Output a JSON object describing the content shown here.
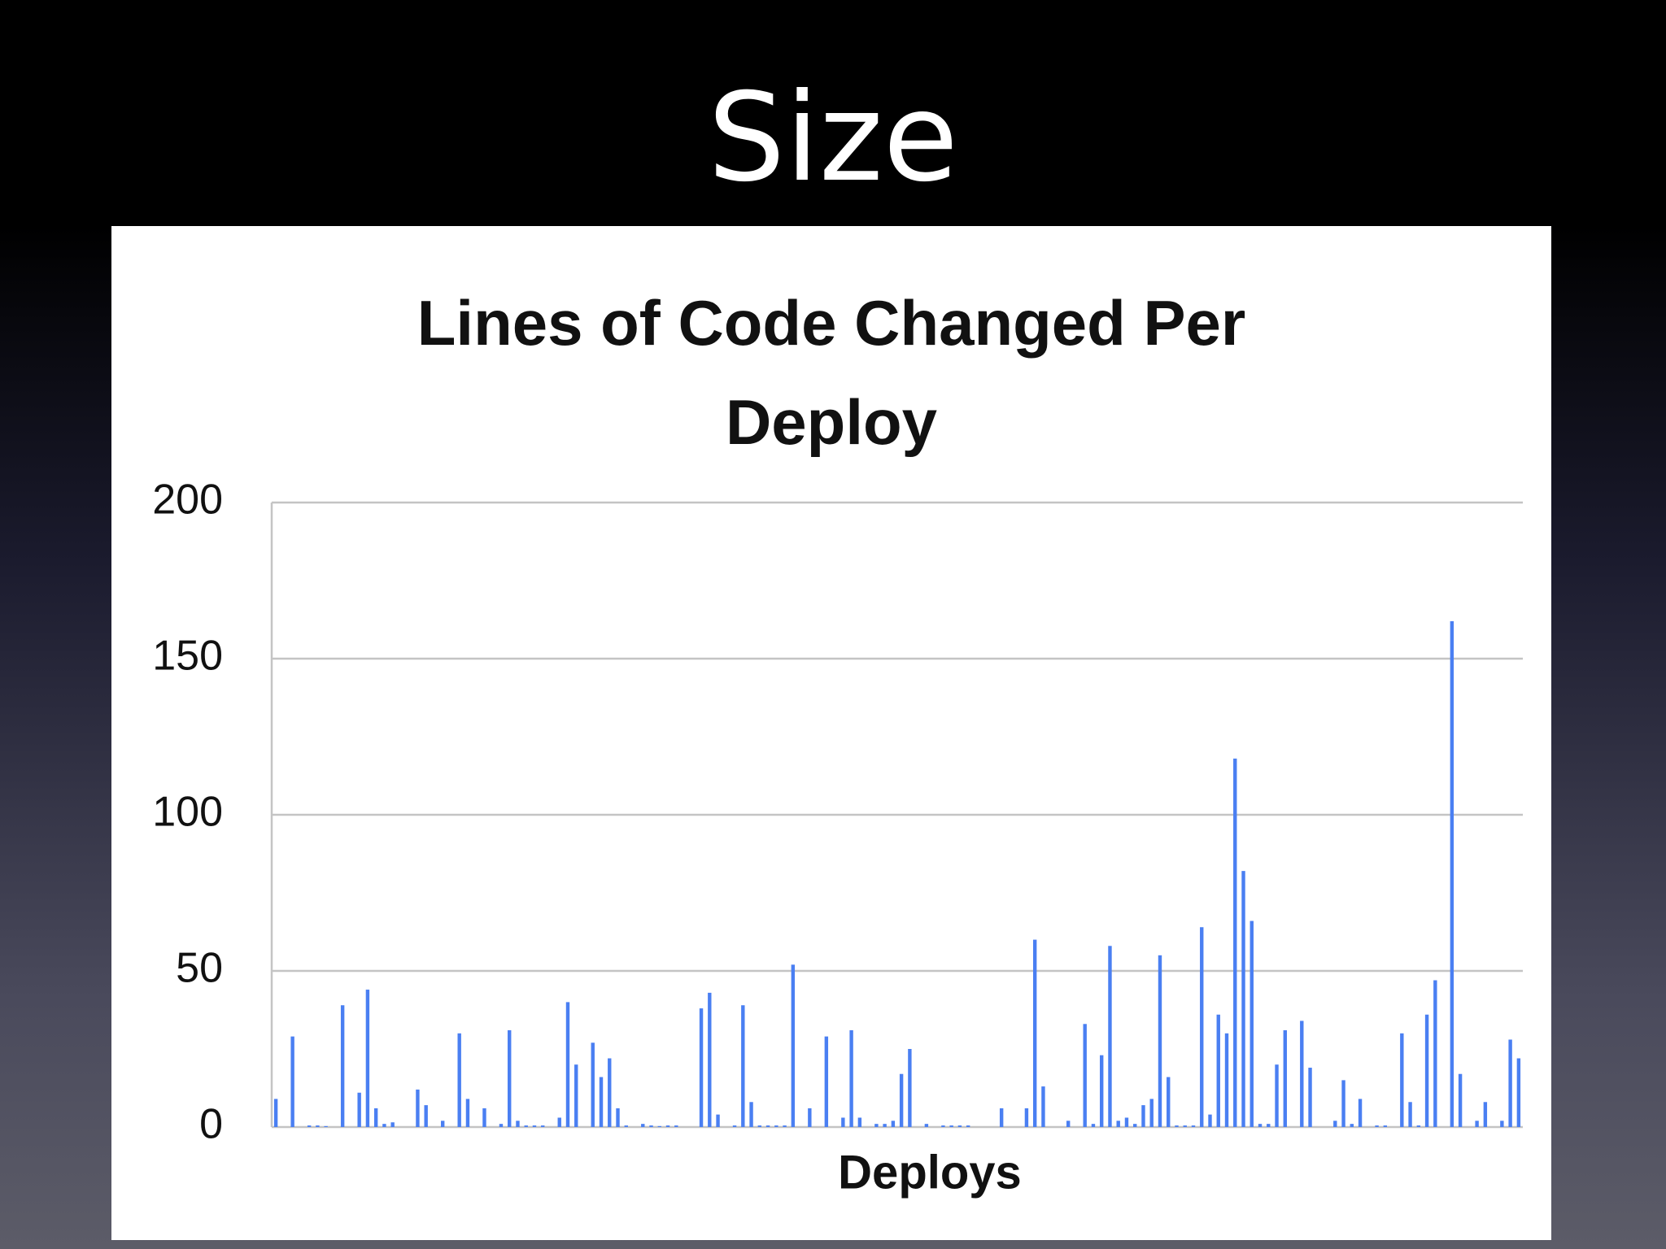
{
  "slide_title": "Size",
  "chart_data": {
    "type": "bar",
    "title": "Lines of Code Changed Per Deploy",
    "x_label": "Deploys",
    "categories": [
      null,
      null,
      null,
      null,
      null,
      null,
      null,
      null,
      null,
      null,
      null,
      null,
      null,
      null,
      null,
      null,
      null,
      null,
      null,
      null,
      null,
      null,
      null,
      null,
      null,
      null,
      null,
      null,
      null,
      null,
      null,
      null,
      null,
      null,
      null,
      null,
      null,
      null,
      null,
      null,
      null,
      null,
      null,
      null,
      null,
      null,
      null,
      null,
      null,
      null,
      null,
      null,
      null,
      null,
      null,
      null,
      null,
      null,
      null,
      null,
      null,
      null,
      null,
      null,
      null,
      null,
      null,
      null,
      null,
      null,
      null,
      null,
      null,
      null,
      null,
      null,
      null,
      null,
      null,
      null,
      null,
      null,
      null,
      null,
      null,
      null,
      null,
      null,
      null,
      null,
      null,
      null,
      null,
      null,
      null,
      null,
      null,
      null,
      null,
      null,
      null,
      null,
      null,
      null,
      null,
      null,
      null,
      null,
      null,
      null,
      null,
      null,
      null,
      null,
      null,
      null,
      null,
      null,
      null,
      null,
      null,
      null,
      null,
      null,
      null,
      null,
      null,
      null,
      null,
      null,
      null,
      null,
      null,
      null,
      null,
      null,
      null,
      null,
      null,
      null,
      null,
      null,
      null,
      null,
      null,
      null,
      null,
      null,
      null,
      null
    ],
    "values": [
      9,
      0,
      29,
      0,
      0.5,
      0.5,
      0.3,
      0,
      39,
      0,
      11,
      44,
      6,
      1,
      1.5,
      0,
      0,
      12,
      7,
      0,
      2,
      0,
      30,
      9,
      0,
      6,
      0,
      1,
      31,
      2,
      0.5,
      0.5,
      0.5,
      0,
      3,
      40,
      20,
      0,
      27,
      16,
      22,
      6,
      0.5,
      0,
      1,
      0.5,
      0.3,
      0.5,
      0.5,
      0,
      0,
      38,
      43,
      4,
      0,
      0.5,
      39,
      8,
      0.5,
      0.5,
      0.5,
      0.5,
      52,
      0,
      6,
      0,
      29,
      0,
      3,
      31,
      3,
      0,
      1,
      1,
      2,
      17,
      25,
      0,
      1,
      0,
      0.5,
      0.5,
      0.5,
      0.5,
      0,
      0,
      0,
      6,
      0,
      0,
      6,
      60,
      13,
      0,
      0,
      2,
      0,
      33,
      1,
      23,
      58,
      2,
      3,
      1,
      7,
      9,
      55,
      16,
      0.5,
      0.5,
      0.5,
      64,
      4,
      36,
      30,
      118,
      82,
      66,
      1,
      1,
      20,
      31,
      0,
      34,
      19,
      0,
      0,
      2,
      15,
      1,
      9,
      0,
      0.5,
      0.5,
      0,
      30,
      8,
      0.5,
      36,
      47,
      0,
      162,
      17,
      0,
      2,
      8,
      0,
      2,
      28,
      22
    ],
    "color": "#4a7ff2",
    "ylim": [
      0,
      200
    ],
    "yticks": [
      0,
      50,
      100,
      150,
      200
    ],
    "grid": true
  }
}
